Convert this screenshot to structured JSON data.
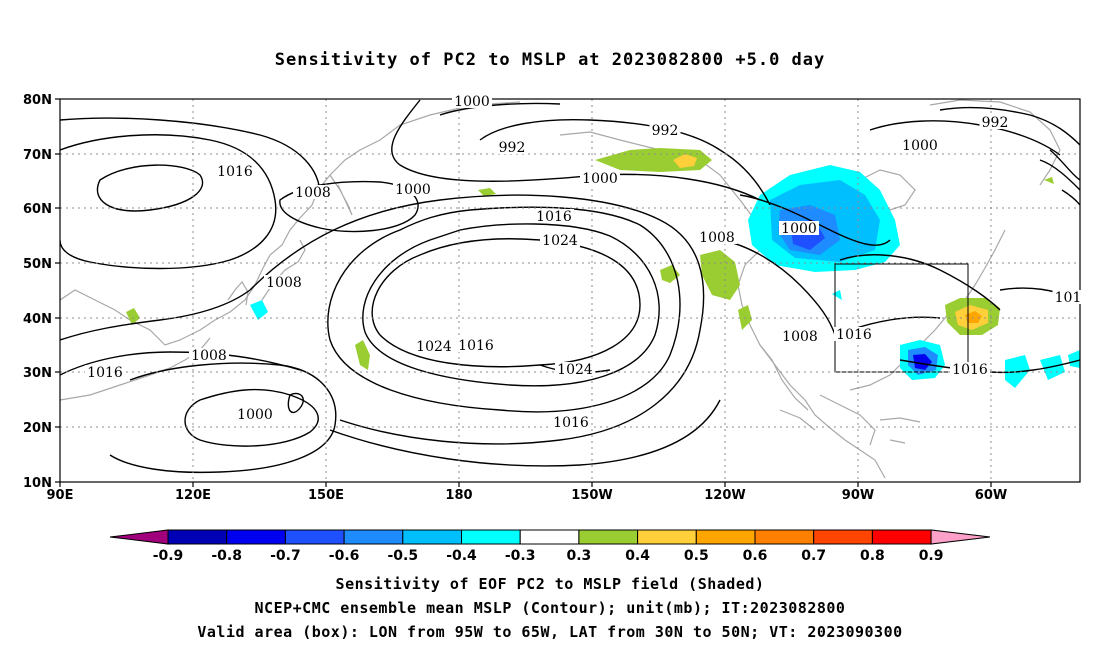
{
  "title": "Sensitivity of PC2 to MSLP at 2023082800 +5.0 day",
  "map": {
    "lat_labels": [
      "10N",
      "20N",
      "30N",
      "40N",
      "50N",
      "60N",
      "70N",
      "80N"
    ],
    "lon_labels": [
      "90E",
      "120E",
      "150E",
      "180",
      "150W",
      "120W",
      "90W",
      "60W"
    ],
    "isobar_labels": [
      {
        "text": "1000"
      },
      {
        "text": "992"
      },
      {
        "text": "992"
      },
      {
        "text": "1000"
      },
      {
        "text": "1016"
      },
      {
        "text": "1008"
      },
      {
        "text": "1000"
      },
      {
        "text": "1016"
      },
      {
        "text": "1024"
      },
      {
        "text": "1008"
      },
      {
        "text": "1000"
      },
      {
        "text": "1008"
      },
      {
        "text": "1000"
      },
      {
        "text": "992"
      },
      {
        "text": "1008"
      },
      {
        "text": "1016"
      },
      {
        "text": "1008"
      },
      {
        "text": "1016"
      },
      {
        "text": "1024"
      },
      {
        "text": "1016"
      },
      {
        "text": "1024"
      },
      {
        "text": "1000"
      },
      {
        "text": "1016"
      },
      {
        "text": "1016"
      },
      {
        "text": "101"
      }
    ],
    "colors": {
      "land_outline": "#a8a8a8",
      "contour": "#000000",
      "grid": "#8c8c8c"
    }
  },
  "colorbar": {
    "labels": [
      "-0.9",
      "-0.8",
      "-0.7",
      "-0.6",
      "-0.5",
      "-0.4",
      "-0.3",
      "0.3",
      "0.4",
      "0.5",
      "0.6",
      "0.7",
      "0.8",
      "0.9"
    ],
    "colors": [
      "#a0007c",
      "#0000b4",
      "#0000f0",
      "#1e50ff",
      "#1e8cff",
      "#00bfff",
      "#00ffff",
      "#ffffff",
      "#9acd32",
      "#ffd03a",
      "#ffa500",
      "#ff7f00",
      "#ff4500",
      "#ff0000",
      "#ffa0c8"
    ]
  },
  "captions": [
    "Sensitivity of EOF PC2 to MSLP field (Shaded)",
    "NCEP+CMC ensemble mean MSLP (Contour); unit(mb); IT:2023082800",
    "Valid area (box): LON from 95W to 65W, LAT from 30N to 50N; VT: 2023090300"
  ]
}
